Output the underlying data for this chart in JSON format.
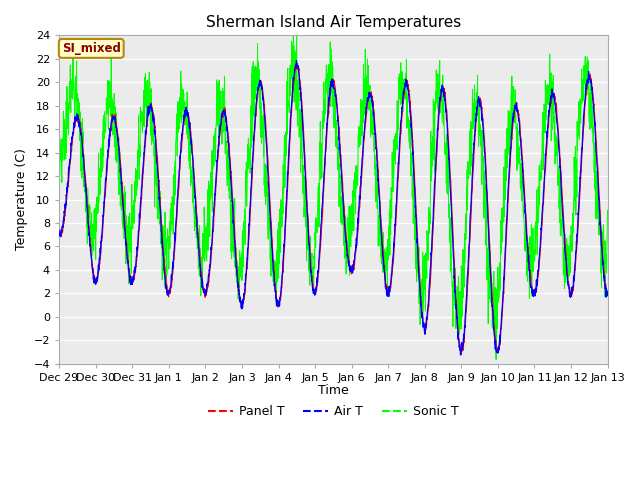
{
  "title": "Sherman Island Air Temperatures",
  "xlabel": "Time",
  "ylabel": "Temperature (C)",
  "ylim": [
    -4,
    24
  ],
  "legend_label_box": "SI_mixed",
  "legend_entries": [
    "Panel T",
    "Air T",
    "Sonic T"
  ],
  "line_colors": [
    "red",
    "blue",
    "lime"
  ],
  "background_color": "#f0f0f0",
  "x_tick_labels": [
    "Dec 29",
    "Dec 30",
    "Dec 31",
    "Jan 1",
    "Jan 2",
    "Jan 3",
    "Jan 4",
    "Jan 5",
    "Jan 6",
    "Jan 7",
    "Jan 8",
    "Jan 9",
    "Jan 10",
    "Jan 11",
    "Jan 12",
    "Jan 13"
  ],
  "num_days": 15,
  "points_per_day": 144,
  "yticks": [
    -4,
    -2,
    0,
    2,
    4,
    6,
    8,
    10,
    12,
    14,
    16,
    18,
    20,
    22,
    24
  ]
}
